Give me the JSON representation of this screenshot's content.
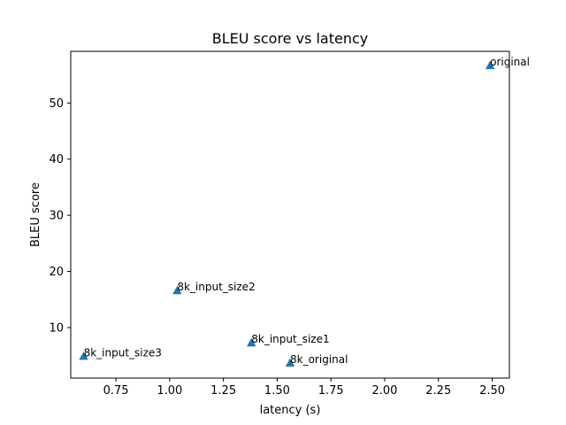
{
  "chart_data": {
    "type": "scatter",
    "title": "BLEU score vs latency",
    "xlabel": "latency (s)",
    "ylabel": "BLEU score",
    "xlim": [
      0.54,
      2.58
    ],
    "ylim": [
      1.0,
      59.2
    ],
    "xticks": [
      0.75,
      1.0,
      1.25,
      1.5,
      1.75,
      2.0,
      2.25,
      2.5
    ],
    "xtick_labels": [
      "0.75",
      "1.00",
      "1.25",
      "1.50",
      "1.75",
      "2.00",
      "2.25",
      "2.50"
    ],
    "yticks": [
      10,
      20,
      30,
      40,
      50
    ],
    "ytick_labels": [
      "10",
      "20",
      "30",
      "40",
      "50"
    ],
    "marker": "triangle",
    "color": "#1f77b4",
    "grid": false,
    "points": [
      {
        "label": "original",
        "x": 2.49,
        "y": 56.7
      },
      {
        "label": "8k_input_size2",
        "x": 1.035,
        "y": 16.6
      },
      {
        "label": "8k_input_size1",
        "x": 1.38,
        "y": 7.3
      },
      {
        "label": "8k_input_size3",
        "x": 0.6,
        "y": 4.9
      },
      {
        "label": "8k_original",
        "x": 1.56,
        "y": 3.7
      }
    ]
  }
}
